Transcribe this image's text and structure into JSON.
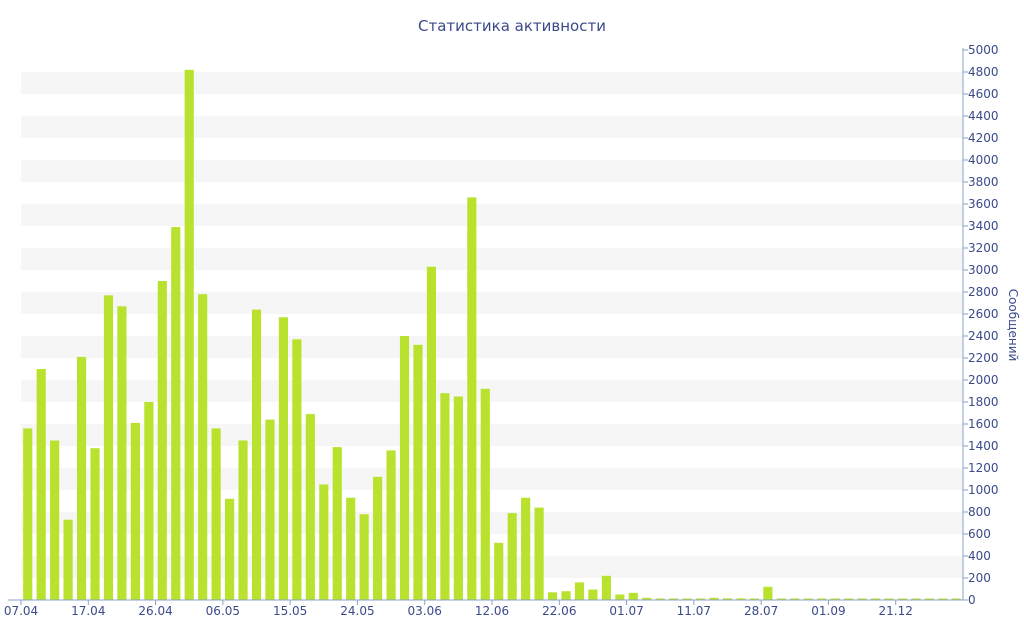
{
  "chart_data": {
    "type": "bar",
    "title": "Статистика активности",
    "ylabel": "Сообщений",
    "xlabel": "",
    "ylim": [
      0,
      5000
    ],
    "ytick_step": 200,
    "grid": "alternating horizontal bands",
    "bar_color": "#b8e22e",
    "text_color": "#3b4a8a",
    "axis_color": "#8aa0c8",
    "band_color": "#f6f6f6",
    "x_tick_labels": [
      {
        "label": "07.04",
        "index": 0
      },
      {
        "label": "17.04",
        "index": 5
      },
      {
        "label": "26.04",
        "index": 10
      },
      {
        "label": "06.05",
        "index": 15
      },
      {
        "label": "15.05",
        "index": 20
      },
      {
        "label": "24.05",
        "index": 25
      },
      {
        "label": "03.06",
        "index": 30
      },
      {
        "label": "12.06",
        "index": 35
      },
      {
        "label": "22.06",
        "index": 40
      },
      {
        "label": "01.07",
        "index": 45
      },
      {
        "label": "11.07",
        "index": 50
      },
      {
        "label": "28.07",
        "index": 55
      },
      {
        "label": "01.09",
        "index": 60
      },
      {
        "label": "21.12",
        "index": 65
      }
    ],
    "values": [
      1560,
      2100,
      1450,
      730,
      2210,
      1380,
      2770,
      2670,
      1610,
      1800,
      2900,
      3390,
      4820,
      2780,
      1560,
      920,
      1450,
      2640,
      1640,
      2570,
      2370,
      1690,
      1050,
      1390,
      930,
      780,
      1120,
      1360,
      2400,
      2320,
      3030,
      1880,
      1850,
      3660,
      1920,
      520,
      790,
      930,
      840,
      70,
      80,
      160,
      95,
      220,
      50,
      65,
      20,
      10,
      10,
      10,
      10,
      20,
      15,
      15,
      10,
      120,
      10,
      10,
      10,
      10,
      10,
      10,
      10,
      10,
      10,
      10,
      10,
      10,
      10,
      10
    ]
  }
}
